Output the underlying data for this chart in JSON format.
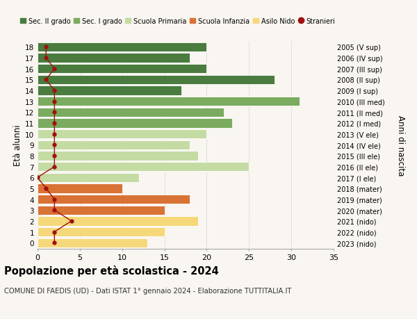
{
  "ages": [
    18,
    17,
    16,
    15,
    14,
    13,
    12,
    11,
    10,
    9,
    8,
    7,
    6,
    5,
    4,
    3,
    2,
    1,
    0
  ],
  "values": [
    20,
    18,
    20,
    28,
    17,
    31,
    22,
    23,
    20,
    18,
    19,
    25,
    12,
    10,
    18,
    15,
    19,
    15,
    13
  ],
  "stranieri": [
    1,
    1,
    2,
    1,
    2,
    2,
    2,
    2,
    2,
    2,
    2,
    2,
    0,
    1,
    2,
    2,
    4,
    2,
    2
  ],
  "anni_nascita": [
    "2005 (V sup)",
    "2006 (IV sup)",
    "2007 (III sup)",
    "2008 (II sup)",
    "2009 (I sup)",
    "2010 (III med)",
    "2011 (II med)",
    "2012 (I med)",
    "2013 (V ele)",
    "2014 (IV ele)",
    "2015 (III ele)",
    "2016 (II ele)",
    "2017 (I ele)",
    "2018 (mater)",
    "2019 (mater)",
    "2020 (mater)",
    "2021 (nido)",
    "2022 (nido)",
    "2023 (nido)"
  ],
  "bar_colors": [
    "#4a7c3f",
    "#4a7c3f",
    "#4a7c3f",
    "#4a7c3f",
    "#4a7c3f",
    "#7aab5e",
    "#7aab5e",
    "#7aab5e",
    "#c5dba4",
    "#c5dba4",
    "#c5dba4",
    "#c5dba4",
    "#c5dba4",
    "#d97235",
    "#d97235",
    "#d97235",
    "#f5d87a",
    "#f5d87a",
    "#f5d87a"
  ],
  "legend_labels": [
    "Sec. II grado",
    "Sec. I grado",
    "Scuola Primaria",
    "Scuola Infanzia",
    "Asilo Nido",
    "Stranieri"
  ],
  "legend_colors": [
    "#4a7c3f",
    "#7aab5e",
    "#c5dba4",
    "#d97235",
    "#f5d87a",
    "#a01010"
  ],
  "stranieri_color": "#a01010",
  "title": "Popolazione per età scolastica - 2024",
  "subtitle": "COMUNE DI FAEDIS (UD) - Dati ISTAT 1° gennaio 2024 - Elaborazione TUTTITALIA.IT",
  "ylabel": "Età alunni",
  "y2label": "Anni di nascita",
  "xlim": [
    0,
    35
  ],
  "background_color": "#f9f5f0",
  "grid_color": "#cccccc"
}
